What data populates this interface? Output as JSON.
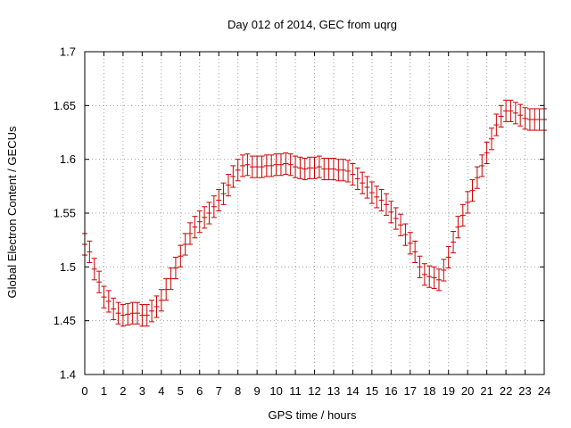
{
  "chart_data": {
    "type": "scatter",
    "title": "Day 012 of 2014, GEC from uqrg",
    "xlabel": "GPS time / hours",
    "ylabel": "Global Electron Content / GECUs",
    "xlim": [
      0,
      24
    ],
    "ylim": [
      1.4,
      1.7
    ],
    "xticks": [
      "0",
      "1",
      "2",
      "3",
      "4",
      "5",
      "6",
      "7",
      "8",
      "9",
      "10",
      "11",
      "12",
      "13",
      "14",
      "15",
      "16",
      "17",
      "18",
      "19",
      "20",
      "21",
      "22",
      "23",
      "24"
    ],
    "yticks": [
      "1.4",
      "1.45",
      "1.5",
      "1.55",
      "1.6",
      "1.65",
      "1.7"
    ],
    "grid": true,
    "error_bars": true,
    "marker": "plus",
    "series_color": "#cc0000",
    "series": [
      {
        "name": "GEC",
        "x": [
          0.0,
          0.25,
          0.5,
          0.75,
          1.0,
          1.25,
          1.5,
          1.75,
          2.0,
          2.25,
          2.5,
          2.75,
          3.0,
          3.25,
          3.5,
          3.75,
          4.0,
          4.25,
          4.5,
          4.75,
          5.0,
          5.25,
          5.5,
          5.75,
          6.0,
          6.25,
          6.5,
          6.75,
          7.0,
          7.25,
          7.5,
          7.75,
          8.0,
          8.25,
          8.5,
          8.75,
          9.0,
          9.25,
          9.5,
          9.75,
          10.0,
          10.25,
          10.5,
          10.75,
          11.0,
          11.25,
          11.5,
          11.75,
          12.0,
          12.25,
          12.5,
          12.75,
          13.0,
          13.25,
          13.5,
          13.75,
          14.0,
          14.25,
          14.5,
          14.75,
          15.0,
          15.25,
          15.5,
          15.75,
          16.0,
          16.25,
          16.5,
          16.75,
          17.0,
          17.25,
          17.5,
          17.75,
          18.0,
          18.25,
          18.5,
          18.75,
          19.0,
          19.25,
          19.5,
          19.75,
          20.0,
          20.25,
          20.5,
          20.75,
          21.0,
          21.25,
          21.5,
          21.75,
          22.0,
          22.25,
          22.5,
          22.75,
          23.0,
          23.25,
          23.5,
          23.75,
          24.0
        ],
        "y": [
          1.521,
          1.514,
          1.498,
          1.486,
          1.472,
          1.468,
          1.461,
          1.457,
          1.455,
          1.456,
          1.457,
          1.457,
          1.455,
          1.455,
          1.459,
          1.463,
          1.469,
          1.479,
          1.489,
          1.499,
          1.51,
          1.521,
          1.531,
          1.537,
          1.542,
          1.546,
          1.55,
          1.556,
          1.562,
          1.568,
          1.576,
          1.584,
          1.59,
          1.594,
          1.595,
          1.593,
          1.593,
          1.593,
          1.594,
          1.594,
          1.595,
          1.595,
          1.596,
          1.595,
          1.593,
          1.592,
          1.591,
          1.592,
          1.592,
          1.593,
          1.591,
          1.591,
          1.591,
          1.59,
          1.59,
          1.589,
          1.586,
          1.582,
          1.578,
          1.574,
          1.569,
          1.565,
          1.562,
          1.558,
          1.551,
          1.545,
          1.539,
          1.53,
          1.522,
          1.514,
          1.5,
          1.493,
          1.491,
          1.49,
          1.488,
          1.497,
          1.509,
          1.523,
          1.537,
          1.548,
          1.56,
          1.571,
          1.583,
          1.594,
          1.606,
          1.619,
          1.632,
          1.64,
          1.645,
          1.645,
          1.643,
          1.641,
          1.638,
          1.637,
          1.637,
          1.637,
          1.637
        ],
        "error": 0.01
      }
    ]
  }
}
